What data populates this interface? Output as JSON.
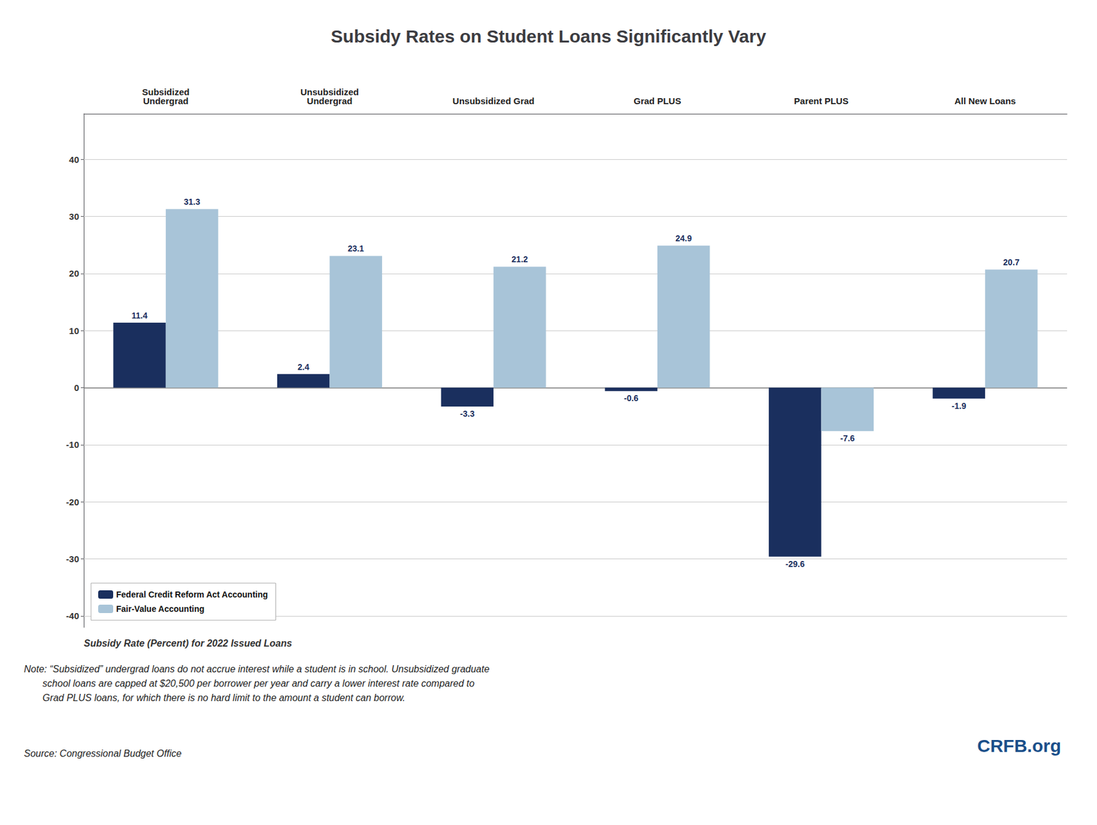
{
  "chart_data": {
    "type": "bar",
    "title": "Subsidy Rates on Student Loans Significantly Vary",
    "categories": [
      "Subsidized\nUndergrad",
      "Unsubsidized\nUndergrad",
      "Unsubsidized Grad",
      "Grad PLUS",
      "Parent PLUS",
      "All New Loans"
    ],
    "series": [
      {
        "name": "Federal Credit Reform Act Accounting",
        "color": "#1a2f5e",
        "values": [
          11.4,
          2.4,
          -3.3,
          -0.6,
          -29.6,
          -1.9
        ]
      },
      {
        "name": "Fair-Value Accounting",
        "color": "#a8c4d8",
        "values": [
          31.3,
          23.1,
          21.2,
          24.9,
          -7.6,
          20.7
        ]
      }
    ],
    "ylim": [
      -42,
      48
    ],
    "yticks": [
      -40,
      -30,
      -20,
      -10,
      0,
      10,
      20,
      30,
      40
    ],
    "ylabel": "Subsidy Rate (Percent) for 2022 Issued Loans",
    "grid": true,
    "legend": "lower left",
    "data_labels": true,
    "annotations": [
      "Note: “Subsidized” undergrad loans do not accrue interest while a student is in school. Unsubsidized graduate\n       school loans are capped at $20,500 per borrower per year and carry a lower interest rate compared to\n       Grad PLUS loans, for which there is no hard limit to the amount a student can borrow.",
      "Source: Congressional Budget Office",
      "CRFB.org"
    ]
  }
}
